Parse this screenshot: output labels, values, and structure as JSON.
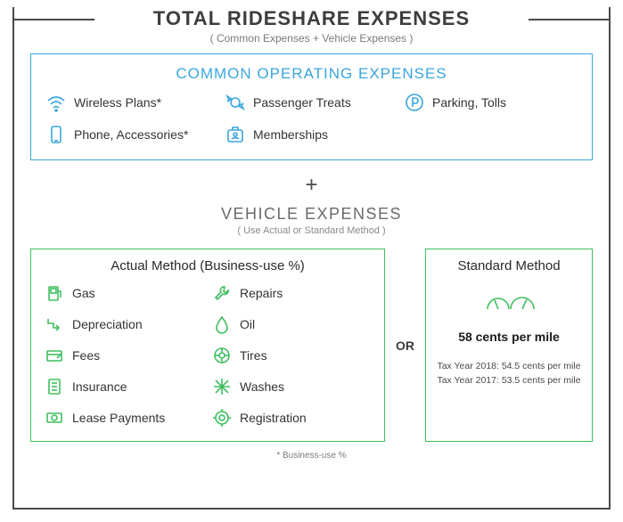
{
  "colors": {
    "blue": "#3aa6dd",
    "green": "#3fbf5f",
    "gray": "#4a4a4a"
  },
  "main": {
    "title": "TOTAL RIDESHARE EXPENSES",
    "subtitle": "( Common Expenses + Vehicle Expenses )"
  },
  "common": {
    "title": "COMMON OPERATING EXPENSES",
    "items": [
      {
        "label": "Wireless Plans*",
        "icon": "wifi"
      },
      {
        "label": "Passenger Treats",
        "icon": "candy"
      },
      {
        "label": "Parking, Tolls",
        "icon": "parking"
      },
      {
        "label": "Phone, Accessories*",
        "icon": "phone"
      },
      {
        "label": "Memberships",
        "icon": "badge"
      }
    ]
  },
  "plus": "+",
  "vehicle": {
    "title": "VEHICLE EXPENSES",
    "subtitle": "( Use Actual or Standard Method )"
  },
  "actual": {
    "title": "Actual Method (Business-use %)",
    "items": [
      {
        "label": "Gas",
        "icon": "gas"
      },
      {
        "label": "Repairs",
        "icon": "wrench"
      },
      {
        "label": "Depreciation",
        "icon": "down"
      },
      {
        "label": "Oil",
        "icon": "drop"
      },
      {
        "label": "Fees",
        "icon": "card"
      },
      {
        "label": "Tires",
        "icon": "tire"
      },
      {
        "label": "Insurance",
        "icon": "doc"
      },
      {
        "label": "Washes",
        "icon": "star"
      },
      {
        "label": "Lease Payments",
        "icon": "cash"
      },
      {
        "label": "Registration",
        "icon": "gear"
      }
    ]
  },
  "or": "OR",
  "standard": {
    "title": "Standard Method",
    "rate": "58 cents per mile",
    "history": [
      "Tax Year 2018: 54.5 cents per mile",
      "Tax Year 2017: 53.5 cents per mile"
    ]
  },
  "footnote": "* Business-use %"
}
